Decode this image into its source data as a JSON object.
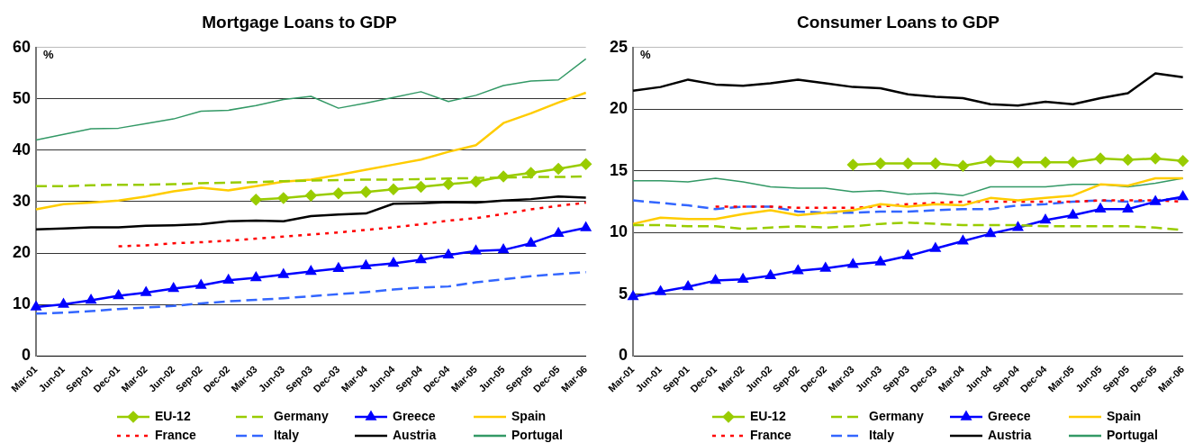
{
  "chart_data": [
    {
      "type": "line",
      "title": "Mortgage Loans to GDP",
      "ylabel": "%",
      "categories": [
        "Mar-01",
        "Jun-01",
        "Sep-01",
        "Dec-01",
        "Mar-02",
        "Jun-02",
        "Sep-02",
        "Dec-02",
        "Mar-03",
        "Jun-03",
        "Sep-03",
        "Dec-03",
        "Mar-04",
        "Jun-04",
        "Sep-04",
        "Dec-04",
        "Mar-05",
        "Jun-05",
        "Sep-05",
        "Dec-05",
        "Mar-06"
      ],
      "ylim": [
        0,
        60
      ],
      "yticks": [
        0,
        10,
        20,
        30,
        40,
        50,
        60
      ],
      "grid": "y",
      "legend": "bottom",
      "series": [
        {
          "name": "EU-12",
          "color": "#99cc00",
          "marker": "diamond",
          "line_style": "solid",
          "values": [
            null,
            null,
            null,
            null,
            null,
            null,
            null,
            null,
            30.4,
            30.7,
            31.2,
            31.6,
            31.9,
            32.4,
            32.9,
            33.4,
            33.9,
            34.9,
            35.6,
            36.4,
            37.3
          ]
        },
        {
          "name": "Germany",
          "color": "#99cc00",
          "marker": "none",
          "line_style": "dashed",
          "values": [
            33,
            33,
            33.2,
            33.3,
            33.3,
            33.4,
            33.6,
            33.7,
            33.8,
            34,
            34.1,
            34.2,
            34.3,
            34.3,
            34.4,
            34.5,
            34.6,
            34.7,
            34.8,
            34.8,
            34.9
          ]
        },
        {
          "name": "Greece",
          "color": "#0000ff",
          "marker": "triangle",
          "line_style": "solid",
          "values": [
            9.5,
            10,
            10.8,
            11.7,
            12.3,
            13.1,
            13.7,
            14.7,
            15.2,
            15.8,
            16.4,
            17,
            17.5,
            18,
            18.7,
            19.6,
            20.4,
            20.6,
            21.9,
            23.8,
            24.9
          ]
        },
        {
          "name": "Spain",
          "color": "#ffcc00",
          "marker": "none",
          "line_style": "solid",
          "values": [
            28.5,
            29.5,
            29.8,
            30.2,
            31,
            32,
            32.7,
            32.2,
            33,
            33.9,
            34.3,
            35.2,
            36.2,
            37.2,
            38.2,
            39.7,
            41,
            45.3,
            47.2,
            49.3,
            51.2
          ]
        },
        {
          "name": "France",
          "color": "#ff0000",
          "marker": "none",
          "line_style": "dotted",
          "values": [
            null,
            null,
            null,
            21.3,
            21.5,
            21.9,
            22.1,
            22.4,
            22.8,
            23.2,
            23.6,
            24,
            24.5,
            25,
            25.6,
            26.3,
            26.8,
            27.6,
            28.5,
            29.2,
            29.8
          ]
        },
        {
          "name": "Italy",
          "color": "#3366ff",
          "marker": "none",
          "line_style": "dashed",
          "values": [
            8.2,
            8.4,
            8.7,
            9.1,
            9.4,
            9.7,
            10.2,
            10.6,
            10.9,
            11.2,
            11.6,
            12,
            12.4,
            12.9,
            13.3,
            13.5,
            14.3,
            14.9,
            15.5,
            15.9,
            16.3
          ]
        },
        {
          "name": "Austria",
          "color": "#000000",
          "marker": "none",
          "line_style": "solid",
          "values": [
            24.6,
            24.8,
            25,
            25,
            25.3,
            25.4,
            25.6,
            26.2,
            26.3,
            26.2,
            27.2,
            27.5,
            27.7,
            29.6,
            29.7,
            29.9,
            29.8,
            30.2,
            30.5,
            31,
            30.8
          ]
        },
        {
          "name": "Portugal",
          "color": "#339966",
          "marker": "none",
          "line_style": "solid",
          "values": [
            42,
            43.1,
            44.2,
            44.3,
            45.2,
            46.1,
            47.6,
            47.8,
            48.7,
            49.9,
            50.5,
            48.2,
            49.2,
            50.3,
            51.4,
            49.5,
            50.7,
            52.6,
            53.5,
            53.7,
            57.8
          ]
        }
      ]
    },
    {
      "type": "line",
      "title": "Consumer Loans to GDP",
      "ylabel": "%",
      "categories": [
        "Mar-01",
        "Jun-01",
        "Sep-01",
        "Dec-01",
        "Mar-02",
        "Jun-02",
        "Sep-02",
        "Dec-02",
        "Mar-03",
        "Jun-03",
        "Sep-03",
        "Dec-03",
        "Mar-04",
        "Jun-04",
        "Sep-04",
        "Dec-04",
        "Mar-05",
        "Jun-05",
        "Sep-05",
        "Dec-05",
        "Mar-06"
      ],
      "ylim": [
        0,
        25
      ],
      "yticks": [
        0,
        5,
        10,
        15,
        20,
        25
      ],
      "grid": "y",
      "legend": "bottom",
      "series": [
        {
          "name": "EU-12",
          "color": "#99cc00",
          "marker": "diamond",
          "line_style": "solid",
          "values": [
            null,
            null,
            null,
            null,
            null,
            null,
            null,
            null,
            15.5,
            15.6,
            15.6,
            15.6,
            15.4,
            15.8,
            15.7,
            15.7,
            15.7,
            16,
            15.9,
            16,
            15.8
          ]
        },
        {
          "name": "Germany",
          "color": "#99cc00",
          "marker": "none",
          "line_style": "dashed",
          "values": [
            10.6,
            10.6,
            10.5,
            10.5,
            10.3,
            10.4,
            10.5,
            10.4,
            10.5,
            10.7,
            10.8,
            10.7,
            10.6,
            10.6,
            10.6,
            10.5,
            10.5,
            10.5,
            10.5,
            10.4,
            10.2
          ]
        },
        {
          "name": "Greece",
          "color": "#0000ff",
          "marker": "triangle",
          "line_style": "solid",
          "values": [
            4.8,
            5.2,
            5.6,
            6.1,
            6.2,
            6.5,
            6.9,
            7.1,
            7.4,
            7.6,
            8.1,
            8.7,
            9.3,
            9.9,
            10.4,
            11,
            11.4,
            11.9,
            11.9,
            12.5,
            12.9
          ]
        },
        {
          "name": "Spain",
          "color": "#ffcc00",
          "marker": "none",
          "line_style": "solid",
          "values": [
            10.7,
            11.2,
            11.1,
            11.1,
            11.5,
            11.8,
            11.4,
            11.6,
            11.8,
            12.3,
            12.1,
            12.3,
            12.2,
            12.8,
            12.6,
            12.8,
            13,
            13.9,
            13.8,
            14.4,
            14.4
          ]
        },
        {
          "name": "France",
          "color": "#ff0000",
          "marker": "none",
          "line_style": "dotted",
          "values": [
            null,
            null,
            null,
            12.1,
            12.1,
            12.1,
            12,
            12,
            12,
            12.1,
            12.3,
            12.4,
            12.5,
            12.5,
            12.5,
            12.5,
            12.5,
            12.6,
            12.6,
            12.6,
            12.5
          ]
        },
        {
          "name": "Italy",
          "color": "#3366ff",
          "marker": "none",
          "line_style": "dashed",
          "values": [
            12.6,
            12.4,
            12.2,
            11.9,
            12.1,
            12.1,
            11.7,
            11.6,
            11.6,
            11.7,
            11.7,
            11.8,
            11.9,
            11.9,
            12.2,
            12.3,
            12.5,
            12.6,
            12.5,
            12.6,
            12.8
          ]
        },
        {
          "name": "Austria",
          "color": "#000000",
          "marker": "none",
          "line_style": "solid",
          "values": [
            21.5,
            21.8,
            22.4,
            22,
            21.9,
            22.1,
            22.4,
            22.1,
            21.8,
            21.7,
            21.2,
            21,
            20.9,
            20.4,
            20.3,
            20.6,
            20.4,
            20.9,
            21.3,
            22.9,
            22.6
          ]
        },
        {
          "name": "Portugal",
          "color": "#339966",
          "marker": "none",
          "line_style": "solid",
          "values": [
            14.2,
            14.2,
            14.1,
            14.4,
            14.1,
            13.7,
            13.6,
            13.6,
            13.3,
            13.4,
            13.1,
            13.2,
            13,
            13.7,
            13.7,
            13.7,
            13.9,
            13.9,
            13.7,
            14,
            14.4
          ]
        }
      ]
    }
  ]
}
